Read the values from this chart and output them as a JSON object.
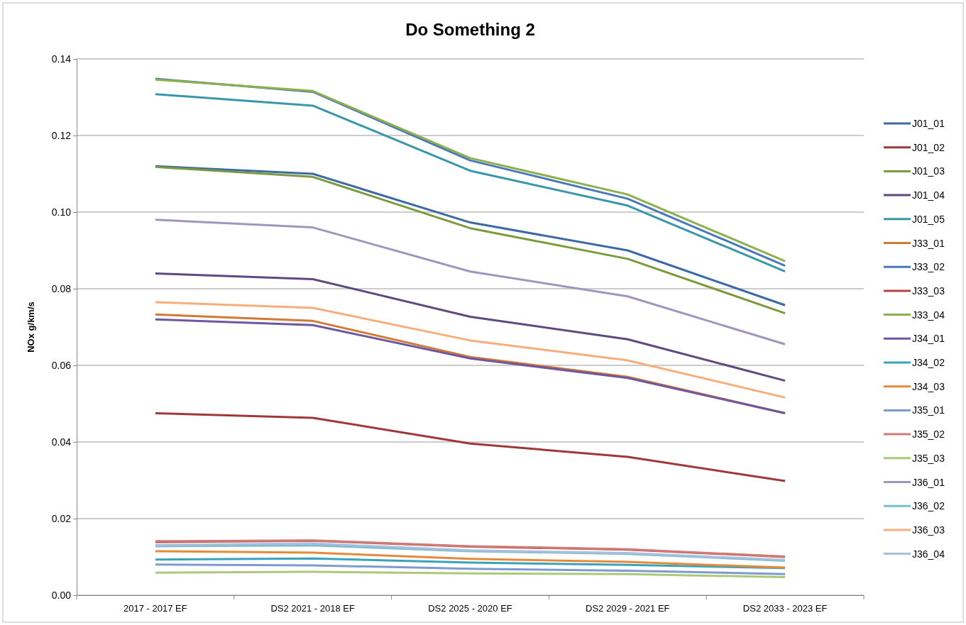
{
  "chart_data": {
    "type": "line",
    "title": "Do Something 2",
    "ylabel": "NOx g/km/s",
    "categories": [
      "2017 - 2017 EF",
      "DS2 2021 - 2018 EF",
      "DS2 2025 - 2020 EF",
      "DS2 2029 - 2021 EF",
      "DS2 2033 - 2023 EF"
    ],
    "ylim": [
      0,
      0.14
    ],
    "yticks": [
      {
        "value": 0,
        "label": "0.00"
      },
      {
        "value": 0.02,
        "label": "0.02"
      },
      {
        "value": 0.04,
        "label": "0.04"
      },
      {
        "value": 0.06,
        "label": "0.06"
      },
      {
        "value": 0.08,
        "label": "0.08"
      },
      {
        "value": 0.1,
        "label": "0.10"
      },
      {
        "value": 0.12,
        "label": "0.12"
      },
      {
        "value": 0.14,
        "label": "0.14"
      }
    ],
    "grid": "y",
    "legend": "right",
    "marker": "none",
    "line_style": "solid",
    "series": [
      {
        "name": "J01_01",
        "color": "#3c6aa4",
        "values": [
          0.112,
          0.11,
          0.0973,
          0.09,
          0.0757
        ]
      },
      {
        "name": "J01_02",
        "color": "#a0373a",
        "values": [
          0.0475,
          0.0463,
          0.0396,
          0.0361,
          0.0298
        ]
      },
      {
        "name": "J01_03",
        "color": "#7a9a3c",
        "values": [
          0.1118,
          0.1092,
          0.0958,
          0.0878,
          0.0736
        ]
      },
      {
        "name": "J01_04",
        "color": "#5c4a80",
        "values": [
          0.084,
          0.0825,
          0.0727,
          0.0668,
          0.056
        ]
      },
      {
        "name": "J01_05",
        "color": "#3a96ab",
        "values": [
          0.1308,
          0.1278,
          0.1108,
          0.1017,
          0.0845
        ]
      },
      {
        "name": "J33_01",
        "color": "#d17a34",
        "values": [
          0.0733,
          0.0716,
          0.0622,
          0.057,
          0.0475
        ]
      },
      {
        "name": "J33_02",
        "color": "#4a78b8",
        "values": [
          0.1348,
          0.1314,
          0.1135,
          0.1035,
          0.086
        ]
      },
      {
        "name": "J33_03",
        "color": "#b64444",
        "values": [
          0.0139,
          0.0142,
          0.0127,
          0.0119,
          0.01
        ]
      },
      {
        "name": "J33_04",
        "color": "#8bb04c",
        "values": [
          0.1346,
          0.1316,
          0.1141,
          0.1046,
          0.0872
        ]
      },
      {
        "name": "J34_01",
        "color": "#6f56a0",
        "values": [
          0.072,
          0.0705,
          0.0618,
          0.0567,
          0.0475
        ]
      },
      {
        "name": "J34_02",
        "color": "#3aa3bc",
        "values": [
          0.0093,
          0.0096,
          0.0085,
          0.0079,
          0.0071
        ]
      },
      {
        "name": "J34_03",
        "color": "#e8893a",
        "values": [
          0.0115,
          0.0111,
          0.0095,
          0.0087,
          0.0072
        ]
      },
      {
        "name": "J35_01",
        "color": "#7d9bcf",
        "values": [
          0.008,
          0.0078,
          0.0069,
          0.0064,
          0.0055
        ]
      },
      {
        "name": "J35_02",
        "color": "#cf7b78",
        "values": [
          0.0141,
          0.0143,
          0.0128,
          0.012,
          0.0101
        ]
      },
      {
        "name": "J35_03",
        "color": "#acc97a",
        "values": [
          0.0059,
          0.0061,
          0.0057,
          0.0055,
          0.0047
        ]
      },
      {
        "name": "J36_01",
        "color": "#a195bf",
        "values": [
          0.098,
          0.096,
          0.0845,
          0.078,
          0.0655
        ]
      },
      {
        "name": "J36_02",
        "color": "#79bdd0",
        "values": [
          0.0128,
          0.013,
          0.0115,
          0.0108,
          0.009
        ]
      },
      {
        "name": "J36_03",
        "color": "#f7ae7c",
        "values": [
          0.0765,
          0.075,
          0.0665,
          0.0613,
          0.0516
        ]
      },
      {
        "name": "J36_04",
        "color": "#a9bfdc",
        "values": [
          0.0131,
          0.0135,
          0.0117,
          0.011,
          0.0092
        ]
      }
    ]
  }
}
